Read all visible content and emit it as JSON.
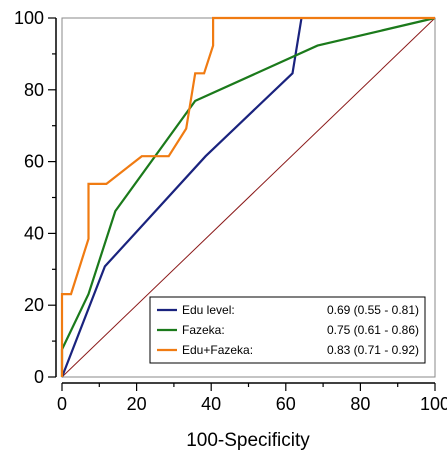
{
  "chart_data": {
    "type": "line",
    "title": "",
    "xlabel": "100-Specificity",
    "ylabel": "",
    "xlim": [
      0,
      100
    ],
    "ylim": [
      0,
      100
    ],
    "xticks": [
      "0",
      "20",
      "40",
      "60",
      "80",
      "100"
    ],
    "yticks": [
      "0",
      "20",
      "40",
      "60",
      "80",
      "100"
    ],
    "legend_position": "bottom-right",
    "reference_line": {
      "points": [
        [
          0,
          0
        ],
        [
          100,
          100
        ]
      ],
      "color": "#8b1a1a"
    },
    "series": [
      {
        "name": "Edu level:",
        "stats": "0.69 (0.55 - 0.81)",
        "color": "#1a237e",
        "points": [
          [
            0,
            0
          ],
          [
            11.5,
            30.8
          ],
          [
            38.5,
            61.5
          ],
          [
            61.8,
            84.6
          ],
          [
            64.2,
            100
          ]
        ]
      },
      {
        "name": "Fazeka:",
        "stats": "0.75 (0.61 - 0.86)",
        "color": "#1b7a1b",
        "points": [
          [
            0,
            0
          ],
          [
            0,
            7.7
          ],
          [
            7.1,
            23.1
          ],
          [
            14.3,
            46.2
          ],
          [
            35.7,
            76.9
          ],
          [
            68.5,
            92.3
          ],
          [
            100,
            100
          ]
        ]
      },
      {
        "name": "Edu+Fazeka:",
        "stats": "0.83 (0.71 - 0.92)",
        "color": "#f07b12",
        "points": [
          [
            0,
            0
          ],
          [
            0,
            23.1
          ],
          [
            2.4,
            23.1
          ],
          [
            7.1,
            38.5
          ],
          [
            7.1,
            53.8
          ],
          [
            11.9,
            53.8
          ],
          [
            21.4,
            61.5
          ],
          [
            28.6,
            61.5
          ],
          [
            33.3,
            69.2
          ],
          [
            35.7,
            84.6
          ],
          [
            38.1,
            84.6
          ],
          [
            40.5,
            92.3
          ],
          [
            40.5,
            100
          ],
          [
            100,
            100
          ]
        ]
      }
    ]
  }
}
